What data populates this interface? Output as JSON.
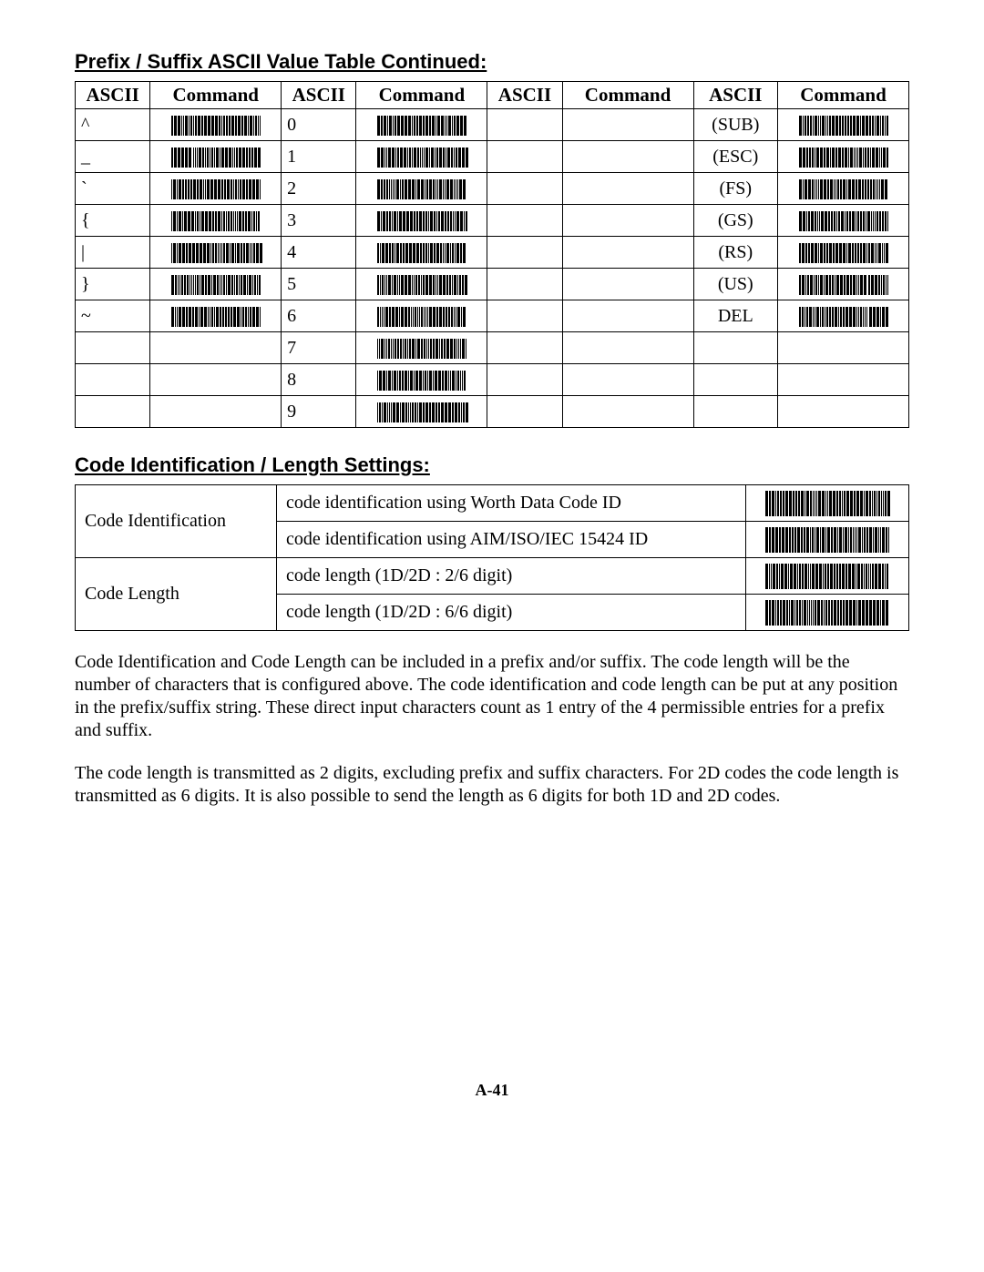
{
  "headings": {
    "h1": "Prefix / Suffix ASCII Value Table Continued:",
    "h2": "Code Identification / Length Settings:"
  },
  "ascii_table": {
    "headers": [
      "ASCII",
      "Command",
      "ASCII",
      "Command",
      "ASCII",
      "Command",
      "ASCII",
      "Command"
    ],
    "col_widths_pct": [
      8,
      14,
      8,
      14,
      8,
      14,
      9,
      14
    ],
    "rows": [
      {
        "c1": "^",
        "b1": true,
        "c2": "0",
        "b2": true,
        "c3": "",
        "b3": false,
        "c4": "(SUB)",
        "b4": true
      },
      {
        "c1": "_",
        "b1": true,
        "c2": "1",
        "b2": true,
        "c3": "",
        "b3": false,
        "c4": "(ESC)",
        "b4": true
      },
      {
        "c1": "`",
        "b1": true,
        "c2": "2",
        "b2": true,
        "c3": "",
        "b3": false,
        "c4": "(FS)",
        "b4": true
      },
      {
        "c1": "{",
        "b1": true,
        "c2": "3",
        "b2": true,
        "c3": "",
        "b3": false,
        "c4": "(GS)",
        "b4": true
      },
      {
        "c1": "|",
        "b1": true,
        "c2": "4",
        "b2": true,
        "c3": "",
        "b3": false,
        "c4": "(RS)",
        "b4": true
      },
      {
        "c1": "}",
        "b1": true,
        "c2": "5",
        "b2": true,
        "c3": "",
        "b3": false,
        "c4": "(US)",
        "b4": true
      },
      {
        "c1": "~",
        "b1": true,
        "c2": "6",
        "b2": true,
        "c3": "",
        "b3": false,
        "c4": "DEL",
        "b4": true
      },
      {
        "c1": "",
        "b1": false,
        "c2": "7",
        "b2": true,
        "c3": "",
        "b3": false,
        "c4": "",
        "b4": false
      },
      {
        "c1": "",
        "b1": false,
        "c2": "8",
        "b2": true,
        "c3": "",
        "b3": false,
        "c4": "",
        "b4": false
      },
      {
        "c1": "",
        "b1": false,
        "c2": "9",
        "b2": true,
        "c3": "",
        "b3": false,
        "c4": "",
        "b4": false
      }
    ]
  },
  "codeid_table": {
    "rows": [
      {
        "group": "Code Identification",
        "span": 2,
        "desc": "code identification using Worth Data Code ID"
      },
      {
        "desc": "code identification using AIM/ISO/IEC 15424 ID"
      },
      {
        "group": "Code Length",
        "span": 2,
        "desc": "code length (1D/2D : 2/6 digit)"
      },
      {
        "desc": "code length (1D/2D : 6/6 digit)"
      }
    ]
  },
  "paragraphs": {
    "p1": "Code Identification and Code Length can be included in a prefix and/or suffix.  The code length will be the number of characters that is configured above.  The code identification and code length can be put at any position in the prefix/suffix string.  These direct input characters count as 1 entry of the 4 permissible entries for a prefix and suffix.",
    "p2": "The code length is transmitted as 2 digits, excluding prefix and suffix characters.  For 2D codes the code length is transmitted as 6 digits.  It is also possible to send the length as 6 digits for both 1D and 2D codes."
  },
  "page_number": "A-41",
  "barcode_style": {
    "width_small": 102,
    "height_small": 22,
    "width_large": 140,
    "height_large": 28,
    "bar_color": "#000000",
    "bg_color": "#ffffff"
  }
}
